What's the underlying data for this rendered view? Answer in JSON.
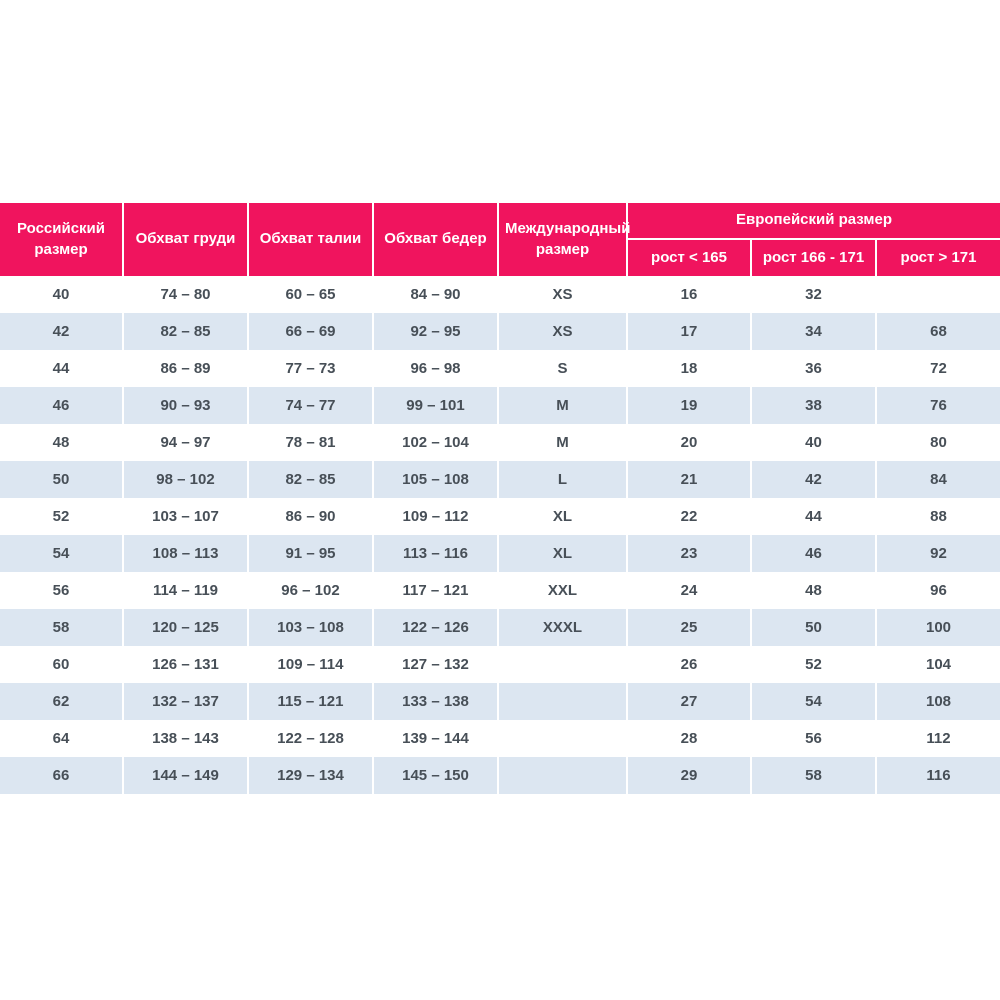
{
  "theme": {
    "header_bg": "#F0145E",
    "header_text": "#FFFFFF",
    "row_bg": "#FFFFFF",
    "row_alt_bg": "#DCE6F1",
    "cell_text": "#474F57",
    "separator": "#FFFFFF"
  },
  "table": {
    "header": {
      "russian_size": "Российский размер",
      "chest": "Обхват груди",
      "waist": "Обхват талии",
      "hips": "Обхват бедер",
      "international_size": "Международный размер",
      "european_group": "Европейский размер",
      "height_lt_165": "рост < 165",
      "height_166_171": "рост 166 - 171",
      "height_gt_171": "рост > 171"
    }
  },
  "chart_data": {
    "type": "table",
    "title": "Таблица размеров (size chart)",
    "columns": [
      "Российский размер",
      "Обхват груди",
      "Обхват талии",
      "Обхват бедер",
      "Международный размер",
      "Европейский размер: рост < 165",
      "Европейский размер: рост 166 - 171",
      "Европейский размер: рост > 171"
    ],
    "rows": [
      [
        "40",
        "74 – 80",
        "60 – 65",
        "84 – 90",
        "XS",
        "16",
        "32",
        ""
      ],
      [
        "42",
        "82 – 85",
        "66 – 69",
        "92 – 95",
        "XS",
        "17",
        "34",
        "68"
      ],
      [
        "44",
        "86 – 89",
        "77 – 73",
        "96 – 98",
        "S",
        "18",
        "36",
        "72"
      ],
      [
        "46",
        "90 – 93",
        "74 – 77",
        "99 – 101",
        "M",
        "19",
        "38",
        "76"
      ],
      [
        "48",
        "94 – 97",
        "78 – 81",
        "102 – 104",
        "M",
        "20",
        "40",
        "80"
      ],
      [
        "50",
        "98 – 102",
        "82 – 85",
        "105 – 108",
        "L",
        "21",
        "42",
        "84"
      ],
      [
        "52",
        "103 – 107",
        "86 – 90",
        "109 – 112",
        "XL",
        "22",
        "44",
        "88"
      ],
      [
        "54",
        "108 – 113",
        "91 – 95",
        "113 – 116",
        "XL",
        "23",
        "46",
        "92"
      ],
      [
        "56",
        "114 – 119",
        "96 – 102",
        "117 – 121",
        "XXL",
        "24",
        "48",
        "96"
      ],
      [
        "58",
        "120 – 125",
        "103 – 108",
        "122 – 126",
        "XXXL",
        "25",
        "50",
        "100"
      ],
      [
        "60",
        "126 – 131",
        "109 – 114",
        "127 – 132",
        "",
        "26",
        "52",
        "104"
      ],
      [
        "62",
        "132 – 137",
        "115 – 121",
        "133 – 138",
        "",
        "27",
        "54",
        "108"
      ],
      [
        "64",
        "138 – 143",
        "122 – 128",
        "139 – 144",
        "",
        "28",
        "56",
        "112"
      ],
      [
        "66",
        "144 – 149",
        "129 – 134",
        "145 – 150",
        "",
        "29",
        "58",
        "116"
      ]
    ]
  }
}
